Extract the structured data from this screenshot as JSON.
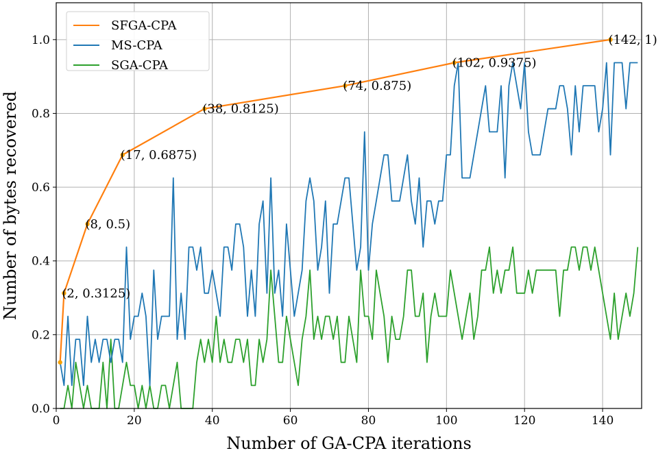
{
  "chart_data": {
    "type": "line",
    "title": "",
    "xlabel": "Number of GA-CPA iterations",
    "ylabel": "Number of bytes recovered",
    "xlim": [
      0,
      150
    ],
    "ylim": [
      0,
      1.1
    ],
    "xticks": [
      0,
      20,
      40,
      60,
      80,
      100,
      120,
      140
    ],
    "yticks": [
      0.0,
      0.2,
      0.4,
      0.6,
      0.8,
      1.0
    ],
    "xtick_labels": [
      "0",
      "20",
      "40",
      "60",
      "80",
      "100",
      "120",
      "140"
    ],
    "ytick_labels": [
      "0.0",
      "0.2",
      "0.4",
      "0.6",
      "0.8",
      "1.0"
    ],
    "grid": true,
    "legend_position": "top-left",
    "series": [
      {
        "name": "SFGA-CPA",
        "color": "#ff7f0e",
        "marker": "dot",
        "x": [
          1,
          2,
          8,
          17,
          38,
          74,
          102,
          142
        ],
        "y": [
          0.125,
          0.3125,
          0.5,
          0.6875,
          0.8125,
          0.875,
          0.9375,
          1.0
        ],
        "annotations": [
          "(2, 0.3125)",
          "(8, 0.5)",
          "(17, 0.6875)",
          "(38, 0.8125)",
          "(74, 0.875)",
          "(102, 0.9375)",
          "(142, 1)"
        ]
      },
      {
        "name": "MS-CPA",
        "color": "#1f77b4",
        "x": [
          1,
          2,
          3,
          4,
          5,
          6,
          7,
          8,
          9,
          10,
          11,
          12,
          13,
          14,
          15,
          16,
          17,
          18,
          19,
          20,
          21,
          22,
          23,
          24,
          25,
          26,
          27,
          28,
          29,
          30,
          31,
          32,
          33,
          34,
          35,
          36,
          37,
          38,
          39,
          40,
          41,
          42,
          43,
          44,
          45,
          46,
          47,
          48,
          49,
          50,
          51,
          52,
          53,
          54,
          55,
          56,
          57,
          58,
          59,
          60,
          61,
          62,
          63,
          64,
          65,
          66,
          67,
          68,
          69,
          70,
          71,
          72,
          73,
          74,
          75,
          76,
          77,
          78,
          79,
          80,
          81,
          82,
          83,
          84,
          85,
          86,
          87,
          88,
          89,
          90,
          91,
          92,
          93,
          94,
          95,
          96,
          97,
          98,
          99,
          100,
          101,
          102,
          103,
          104,
          105,
          106,
          107,
          108,
          109,
          110,
          111,
          112,
          113,
          114,
          115,
          116,
          117,
          118,
          119,
          120,
          121,
          122,
          123,
          124,
          125,
          126,
          127,
          128,
          129,
          130,
          131,
          132,
          133,
          134,
          135,
          136,
          137,
          138,
          139,
          140,
          141,
          142,
          143,
          144,
          145,
          146,
          147,
          148,
          149
        ],
        "y": [
          0.125,
          0.0625,
          0.25,
          0.0625,
          0.1875,
          0.1875,
          0.0625,
          0.25,
          0.125,
          0.1875,
          0.125,
          0.1875,
          0.1875,
          0.125,
          0.1875,
          0.1875,
          0.125,
          0.4375,
          0.1875,
          0.25,
          0.25,
          0.3125,
          0.25,
          0.0625,
          0.375,
          0.1875,
          0.25,
          0.25,
          0.25,
          0.625,
          0.1875,
          0.3125,
          0.1875,
          0.4375,
          0.4375,
          0.375,
          0.4375,
          0.3125,
          0.3125,
          0.375,
          0.3125,
          0.25,
          0.4375,
          0.4375,
          0.375,
          0.5,
          0.5,
          0.4375,
          0.25,
          0.375,
          0.25,
          0.5,
          0.5625,
          0.3125,
          0.625,
          0.3125,
          0.375,
          0.25,
          0.5,
          0.375,
          0.25,
          0.3125,
          0.375,
          0.5625,
          0.625,
          0.5625,
          0.375,
          0.4375,
          0.5625,
          0.3125,
          0.5,
          0.5,
          0.5625,
          0.625,
          0.625,
          0.5,
          0.375,
          0.4375,
          0.75,
          0.375,
          0.5,
          0.5625,
          0.625,
          0.6875,
          0.6875,
          0.5625,
          0.5625,
          0.5625,
          0.625,
          0.6875,
          0.5625,
          0.5,
          0.625,
          0.4375,
          0.5625,
          0.5625,
          0.5,
          0.5625,
          0.5625,
          0.6875,
          0.6875,
          0.875,
          0.9375,
          0.625,
          0.625,
          0.625,
          0.6875,
          0.75,
          0.8125,
          0.875,
          0.75,
          0.75,
          0.75,
          0.875,
          0.625,
          0.875,
          0.9375,
          0.875,
          0.8125,
          0.9375,
          0.75,
          0.6875,
          0.6875,
          0.6875,
          0.75,
          0.8125,
          0.8125,
          0.8125,
          0.875,
          0.875,
          0.8125,
          0.6875,
          0.875,
          0.75,
          0.875,
          0.875,
          0.875,
          0.875,
          0.75,
          0.8125,
          0.9375,
          0.6875,
          0.9375,
          0.9375,
          0.9375,
          0.8125,
          0.9375,
          0.9375,
          0.9375
        ]
      },
      {
        "name": "SGA-CPA",
        "color": "#2ca02c",
        "x": [
          1,
          2,
          3,
          4,
          5,
          6,
          7,
          8,
          9,
          10,
          11,
          12,
          13,
          14,
          15,
          16,
          17,
          18,
          19,
          20,
          21,
          22,
          23,
          24,
          25,
          26,
          27,
          28,
          29,
          30,
          31,
          32,
          33,
          34,
          35,
          36,
          37,
          38,
          39,
          40,
          41,
          42,
          43,
          44,
          45,
          46,
          47,
          48,
          49,
          50,
          51,
          52,
          53,
          54,
          55,
          56,
          57,
          58,
          59,
          60,
          61,
          62,
          63,
          64,
          65,
          66,
          67,
          68,
          69,
          70,
          71,
          72,
          73,
          74,
          75,
          76,
          77,
          78,
          79,
          80,
          81,
          82,
          83,
          84,
          85,
          86,
          87,
          88,
          89,
          90,
          91,
          92,
          93,
          94,
          95,
          96,
          97,
          98,
          99,
          100,
          101,
          102,
          103,
          104,
          105,
          106,
          107,
          108,
          109,
          110,
          111,
          112,
          113,
          114,
          115,
          116,
          117,
          118,
          119,
          120,
          121,
          122,
          123,
          124,
          125,
          126,
          127,
          128,
          129,
          130,
          131,
          132,
          133,
          134,
          135,
          136,
          137,
          138,
          139,
          140,
          141,
          142,
          143,
          144,
          145,
          146,
          147,
          148,
          149
        ],
        "y": [
          0.0,
          0.0,
          0.0625,
          0.0,
          0.125,
          0.0625,
          0.0,
          0.0625,
          0.0,
          0.0,
          0.0,
          0.125,
          0.0,
          0.1875,
          0.0,
          0.0,
          0.0625,
          0.125,
          0.0625,
          0.0625,
          0.0,
          0.0625,
          0.0,
          0.0625,
          0.0,
          0.0,
          0.0625,
          0.0625,
          0.0,
          0.0625,
          0.125,
          0.0,
          0.0,
          0.0,
          0.0,
          0.125,
          0.1875,
          0.125,
          0.1875,
          0.125,
          0.25,
          0.125,
          0.1875,
          0.125,
          0.125,
          0.1875,
          0.1875,
          0.125,
          0.1875,
          0.0625,
          0.0625,
          0.1875,
          0.125,
          0.1875,
          0.375,
          0.25,
          0.125,
          0.125,
          0.25,
          0.1875,
          0.125,
          0.0625,
          0.1875,
          0.25,
          0.375,
          0.1875,
          0.25,
          0.1875,
          0.25,
          0.25,
          0.1875,
          0.25,
          0.125,
          0.125,
          0.25,
          0.1875,
          0.125,
          0.375,
          0.25,
          0.25,
          0.1875,
          0.375,
          0.3125,
          0.25,
          0.125,
          0.25,
          0.1875,
          0.1875,
          0.25,
          0.375,
          0.375,
          0.25,
          0.25,
          0.3125,
          0.125,
          0.25,
          0.3125,
          0.25,
          0.25,
          0.25,
          0.375,
          0.3125,
          0.25,
          0.1875,
          0.25,
          0.3125,
          0.1875,
          0.25,
          0.375,
          0.375,
          0.4375,
          0.3125,
          0.375,
          0.3125,
          0.375,
          0.375,
          0.4375,
          0.3125,
          0.3125,
          0.3125,
          0.375,
          0.3125,
          0.375,
          0.375,
          0.375,
          0.375,
          0.375,
          0.375,
          0.25,
          0.375,
          0.375,
          0.4375,
          0.4375,
          0.375,
          0.4375,
          0.4375,
          0.375,
          0.4375,
          0.375,
          0.3125,
          0.25,
          0.1875,
          0.3125,
          0.1875,
          0.25,
          0.3125,
          0.25,
          0.3125,
          0.4375
        ]
      }
    ]
  }
}
